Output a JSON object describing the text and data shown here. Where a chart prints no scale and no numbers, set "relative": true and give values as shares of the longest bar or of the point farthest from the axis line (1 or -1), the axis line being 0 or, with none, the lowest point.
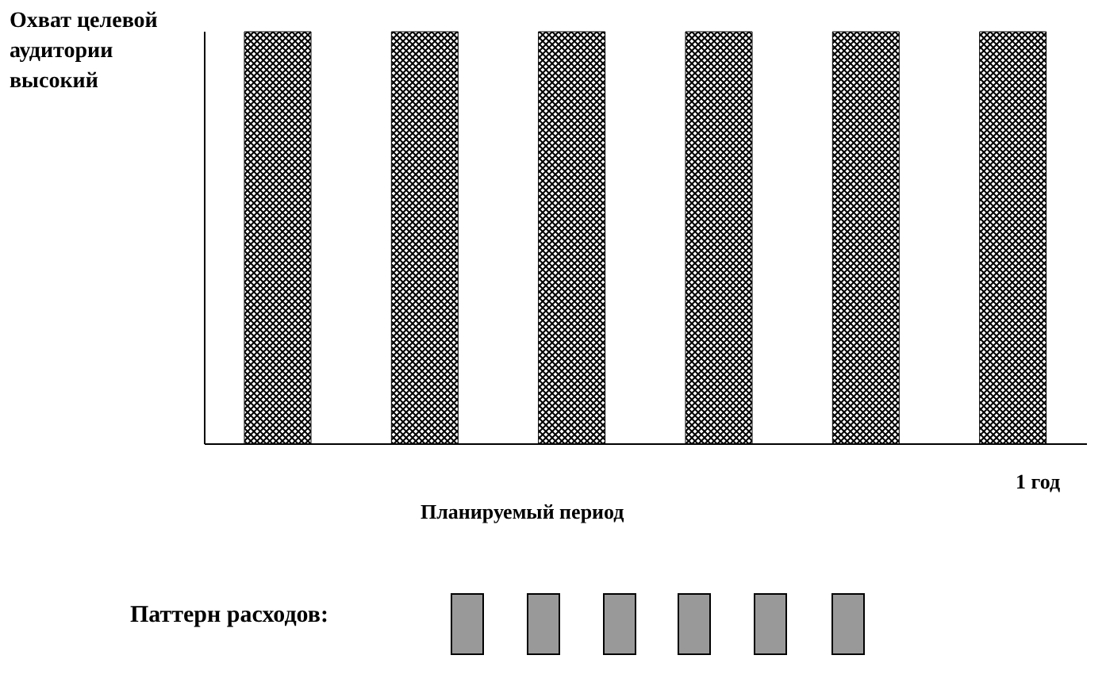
{
  "chart_data": {
    "type": "bar",
    "relative": true,
    "ylabel": "Охват целевой аудитории высокий",
    "xlabel": "Планируемый период",
    "categories": [
      null,
      null,
      null,
      null,
      null,
      null
    ],
    "values": [
      1,
      1,
      1,
      1,
      1,
      1
    ],
    "color": "#000000",
    "annotations": [
      "1 год",
      "Паттерн расходов:"
    ]
  }
}
